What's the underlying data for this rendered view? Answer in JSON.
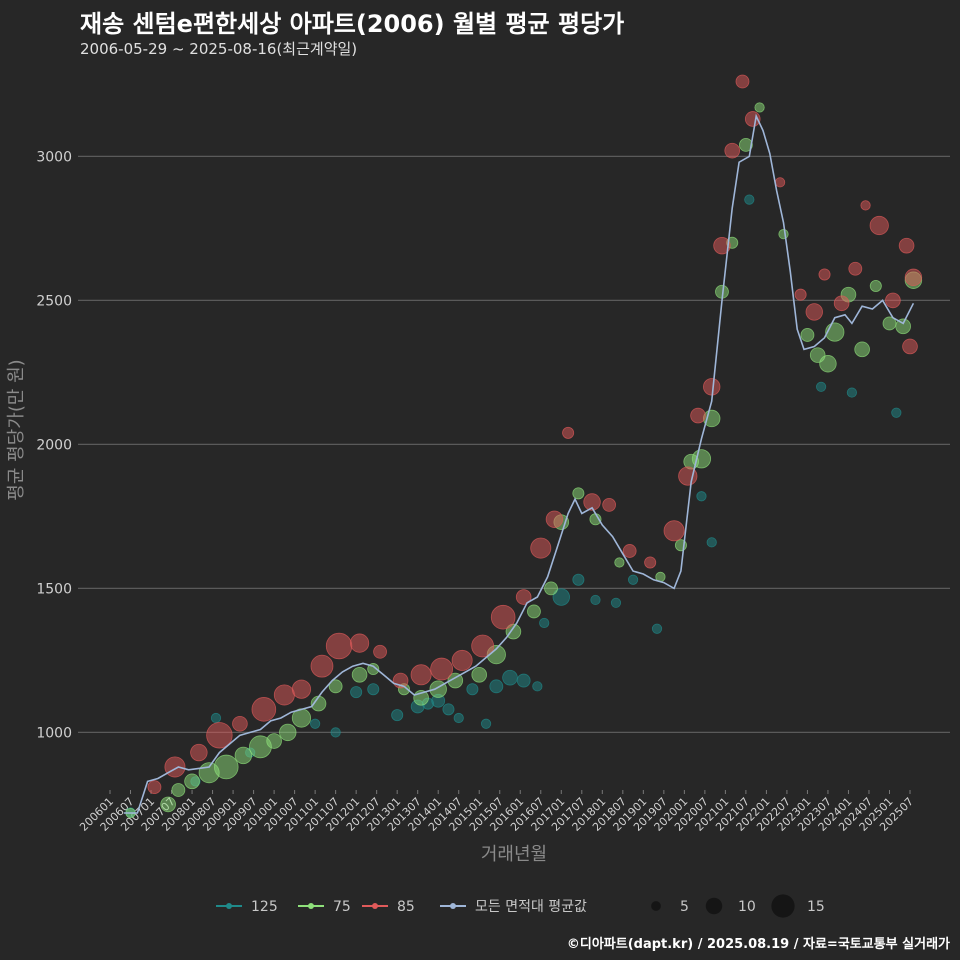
{
  "chart_data": {
    "type": "scatter",
    "title": "재송 센텀e편한세상 아파트(2006) 월별 평균 평당가",
    "subtitle": "2006-05-29 ~ 2025-08-16(최근계약일)",
    "xlabel": "거래년월",
    "ylabel": "평균 평당가(만 원)",
    "x_range": [
      "2006-01",
      "2025-08"
    ],
    "ylim": [
      800,
      3300
    ],
    "yticks": [
      1000,
      1500,
      2000,
      2500,
      3000
    ],
    "xticks": [
      "200601",
      "200607",
      "200701",
      "200707",
      "200801",
      "200807",
      "200901",
      "200907",
      "201001",
      "201007",
      "201101",
      "201107",
      "201201",
      "201207",
      "201301",
      "201307",
      "201401",
      "201407",
      "201501",
      "201507",
      "201601",
      "201607",
      "201701",
      "201707",
      "201801",
      "201807",
      "201901",
      "201907",
      "202001",
      "202007",
      "202101",
      "202107",
      "202201",
      "202207",
      "202301",
      "202307",
      "202401",
      "202407",
      "202501",
      "202507"
    ],
    "grid": true,
    "legend_placement": "bottom",
    "colors": {
      "125": "#1f8a8a",
      "75": "#8ee07a",
      "85": "#e05a5a",
      "avg": "#9fb6d8"
    },
    "legend": {
      "series": [
        "125",
        "75",
        "85",
        "모든 면적대 평균값"
      ],
      "sizes": [
        5,
        10,
        15
      ]
    },
    "series": [
      {
        "name": "125",
        "points": [
          [
            "2006-07",
            722,
            3
          ],
          [
            "2008-02",
            830,
            3
          ],
          [
            "2008-08",
            1050,
            3
          ],
          [
            "2009-06",
            930,
            3
          ],
          [
            "2011-01",
            1030,
            3
          ],
          [
            "2011-07",
            1000,
            3
          ],
          [
            "2012-01",
            1140,
            4
          ],
          [
            "2012-06",
            1150,
            4
          ],
          [
            "2013-01",
            1060,
            4
          ],
          [
            "2013-07",
            1090,
            5
          ],
          [
            "2013-10",
            1100,
            4
          ],
          [
            "2014-01",
            1110,
            5
          ],
          [
            "2014-04",
            1080,
            4
          ],
          [
            "2014-07",
            1050,
            3
          ],
          [
            "2014-11",
            1150,
            4
          ],
          [
            "2015-03",
            1030,
            3
          ],
          [
            "2015-06",
            1160,
            5
          ],
          [
            "2015-10",
            1190,
            6
          ],
          [
            "2016-02",
            1180,
            5
          ],
          [
            "2016-06",
            1160,
            3
          ],
          [
            "2016-08",
            1380,
            3
          ],
          [
            "2017-01",
            1470,
            7
          ],
          [
            "2017-06",
            1530,
            4
          ],
          [
            "2017-11",
            1460,
            3
          ],
          [
            "2018-05",
            1450,
            3
          ],
          [
            "2018-10",
            1530,
            3
          ],
          [
            "2019-05",
            1360,
            3
          ],
          [
            "2020-06",
            1820,
            3
          ],
          [
            "2020-09",
            1660,
            3
          ],
          [
            "2021-08",
            2850,
            3
          ],
          [
            "2023-05",
            2200,
            3
          ],
          [
            "2024-02",
            2180,
            3
          ],
          [
            "2025-03",
            2110,
            3
          ]
        ]
      },
      {
        "name": "75",
        "points": [
          [
            "2006-07",
            720,
            3
          ],
          [
            "2007-06",
            750,
            6
          ],
          [
            "2007-09",
            800,
            5
          ],
          [
            "2008-01",
            830,
            6
          ],
          [
            "2008-06",
            860,
            9
          ],
          [
            "2008-11",
            880,
            11
          ],
          [
            "2009-04",
            920,
            7
          ],
          [
            "2009-09",
            950,
            10
          ],
          [
            "2010-01",
            970,
            6
          ],
          [
            "2010-05",
            1000,
            7
          ],
          [
            "2010-09",
            1050,
            8
          ],
          [
            "2011-02",
            1100,
            6
          ],
          [
            "2011-07",
            1160,
            5
          ],
          [
            "2012-02",
            1200,
            6
          ],
          [
            "2012-06",
            1220,
            4
          ],
          [
            "2013-03",
            1150,
            4
          ],
          [
            "2013-08",
            1120,
            6
          ],
          [
            "2014-01",
            1150,
            7
          ],
          [
            "2014-06",
            1180,
            6
          ],
          [
            "2015-01",
            1200,
            6
          ],
          [
            "2015-06",
            1270,
            8
          ],
          [
            "2015-11",
            1350,
            6
          ],
          [
            "2016-05",
            1420,
            5
          ],
          [
            "2016-10",
            1500,
            5
          ],
          [
            "2017-01",
            1730,
            6
          ],
          [
            "2017-06",
            1830,
            4
          ],
          [
            "2017-11",
            1740,
            4
          ],
          [
            "2018-06",
            1590,
            3
          ],
          [
            "2019-06",
            1540,
            3
          ],
          [
            "2019-12",
            1650,
            4
          ],
          [
            "2020-03",
            1940,
            6
          ],
          [
            "2020-06",
            1950,
            8
          ],
          [
            "2020-09",
            2090,
            7
          ],
          [
            "2020-12",
            2530,
            5
          ],
          [
            "2021-03",
            2700,
            4
          ],
          [
            "2021-07",
            3040,
            5
          ],
          [
            "2021-11",
            3170,
            3
          ],
          [
            "2022-06",
            2730,
            3
          ],
          [
            "2023-01",
            2380,
            5
          ],
          [
            "2023-04",
            2310,
            6
          ],
          [
            "2023-07",
            2280,
            7
          ],
          [
            "2023-09",
            2390,
            8
          ],
          [
            "2024-01",
            2520,
            6
          ],
          [
            "2024-05",
            2330,
            6
          ],
          [
            "2024-09",
            2550,
            4
          ],
          [
            "2025-01",
            2420,
            5
          ],
          [
            "2025-05",
            2410,
            6
          ],
          [
            "2025-08",
            2570,
            7
          ]
        ]
      },
      {
        "name": "85",
        "points": [
          [
            "2007-02",
            810,
            5
          ],
          [
            "2007-08",
            880,
            9
          ],
          [
            "2008-03",
            930,
            7
          ],
          [
            "2008-09",
            990,
            12
          ],
          [
            "2009-03",
            1030,
            6
          ],
          [
            "2009-10",
            1080,
            11
          ],
          [
            "2010-04",
            1130,
            9
          ],
          [
            "2010-09",
            1150,
            8
          ],
          [
            "2011-03",
            1230,
            10
          ],
          [
            "2011-08",
            1300,
            12
          ],
          [
            "2012-02",
            1310,
            8
          ],
          [
            "2012-08",
            1280,
            5
          ],
          [
            "2013-02",
            1180,
            6
          ],
          [
            "2013-08",
            1200,
            9
          ],
          [
            "2014-02",
            1220,
            10
          ],
          [
            "2014-08",
            1250,
            9
          ],
          [
            "2015-02",
            1300,
            10
          ],
          [
            "2015-08",
            1400,
            11
          ],
          [
            "2016-02",
            1470,
            6
          ],
          [
            "2016-07",
            1640,
            9
          ],
          [
            "2016-11",
            1740,
            7
          ],
          [
            "2017-03",
            2040,
            4
          ],
          [
            "2017-10",
            1800,
            7
          ],
          [
            "2018-03",
            1790,
            5
          ],
          [
            "2018-09",
            1630,
            5
          ],
          [
            "2019-03",
            1590,
            4
          ],
          [
            "2019-10",
            1700,
            9
          ],
          [
            "2020-02",
            1890,
            8
          ],
          [
            "2020-05",
            2100,
            6
          ],
          [
            "2020-09",
            2200,
            7
          ],
          [
            "2020-12",
            2690,
            7
          ],
          [
            "2021-03",
            3020,
            6
          ],
          [
            "2021-06",
            3260,
            5
          ],
          [
            "2021-09",
            3130,
            6
          ],
          [
            "2022-05",
            2910,
            3
          ],
          [
            "2022-11",
            2520,
            4
          ],
          [
            "2023-03",
            2460,
            7
          ],
          [
            "2023-06",
            2590,
            4
          ],
          [
            "2023-11",
            2490,
            6
          ],
          [
            "2024-03",
            2610,
            5
          ],
          [
            "2024-06",
            2830,
            3
          ],
          [
            "2024-10",
            2760,
            8
          ],
          [
            "2025-02",
            2500,
            6
          ],
          [
            "2025-06",
            2690,
            6
          ],
          [
            "2025-08",
            2580,
            7
          ],
          [
            "2025-07",
            2340,
            6
          ]
        ]
      }
    ],
    "average": [
      [
        "2006-05",
        720
      ],
      [
        "2006-09",
        720
      ],
      [
        "2006-12",
        830
      ],
      [
        "2007-03",
        840
      ],
      [
        "2007-06",
        860
      ],
      [
        "2007-09",
        880
      ],
      [
        "2007-12",
        870
      ],
      [
        "2008-03",
        875
      ],
      [
        "2008-06",
        880
      ],
      [
        "2008-09",
        930
      ],
      [
        "2008-12",
        960
      ],
      [
        "2009-03",
        990
      ],
      [
        "2009-06",
        1000
      ],
      [
        "2009-09",
        1010
      ],
      [
        "2009-12",
        1040
      ],
      [
        "2010-03",
        1050
      ],
      [
        "2010-06",
        1070
      ],
      [
        "2010-09",
        1080
      ],
      [
        "2010-12",
        1090
      ],
      [
        "2011-03",
        1140
      ],
      [
        "2011-06",
        1180
      ],
      [
        "2011-09",
        1210
      ],
      [
        "2011-12",
        1230
      ],
      [
        "2012-03",
        1240
      ],
      [
        "2012-06",
        1230
      ],
      [
        "2012-09",
        1200
      ],
      [
        "2012-12",
        1170
      ],
      [
        "2013-03",
        1160
      ],
      [
        "2013-06",
        1130
      ],
      [
        "2013-09",
        1140
      ],
      [
        "2013-12",
        1150
      ],
      [
        "2014-03",
        1170
      ],
      [
        "2014-06",
        1190
      ],
      [
        "2014-09",
        1210
      ],
      [
        "2014-12",
        1230
      ],
      [
        "2015-03",
        1260
      ],
      [
        "2015-06",
        1290
      ],
      [
        "2015-09",
        1330
      ],
      [
        "2015-12",
        1380
      ],
      [
        "2016-03",
        1450
      ],
      [
        "2016-06",
        1470
      ],
      [
        "2016-09",
        1540
      ],
      [
        "2016-12",
        1650
      ],
      [
        "2017-03",
        1760
      ],
      [
        "2017-05",
        1810
      ],
      [
        "2017-07",
        1760
      ],
      [
        "2017-10",
        1780
      ],
      [
        "2018-01",
        1720
      ],
      [
        "2018-04",
        1680
      ],
      [
        "2018-07",
        1620
      ],
      [
        "2018-10",
        1560
      ],
      [
        "2019-01",
        1550
      ],
      [
        "2019-04",
        1530
      ],
      [
        "2019-07",
        1520
      ],
      [
        "2019-10",
        1500
      ],
      [
        "2019-12",
        1560
      ],
      [
        "2020-03",
        1870
      ],
      [
        "2020-06",
        2020
      ],
      [
        "2020-09",
        2150
      ],
      [
        "2020-12",
        2500
      ],
      [
        "2021-03",
        2820
      ],
      [
        "2021-05",
        2980
      ],
      [
        "2021-08",
        3000
      ],
      [
        "2021-10",
        3140
      ],
      [
        "2021-12",
        3090
      ],
      [
        "2022-02",
        3010
      ],
      [
        "2022-04",
        2880
      ],
      [
        "2022-06",
        2770
      ],
      [
        "2022-08",
        2600
      ],
      [
        "2022-10",
        2400
      ],
      [
        "2022-12",
        2330
      ],
      [
        "2023-03",
        2340
      ],
      [
        "2023-06",
        2370
      ],
      [
        "2023-09",
        2440
      ],
      [
        "2023-12",
        2450
      ],
      [
        "2024-02",
        2420
      ],
      [
        "2024-05",
        2480
      ],
      [
        "2024-08",
        2470
      ],
      [
        "2024-11",
        2500
      ],
      [
        "2025-02",
        2440
      ],
      [
        "2025-05",
        2420
      ],
      [
        "2025-08",
        2490
      ]
    ]
  },
  "caption": "©디아파트(dapt.kr) / 2025.08.19 / 자료=국토교통부 실거래가"
}
